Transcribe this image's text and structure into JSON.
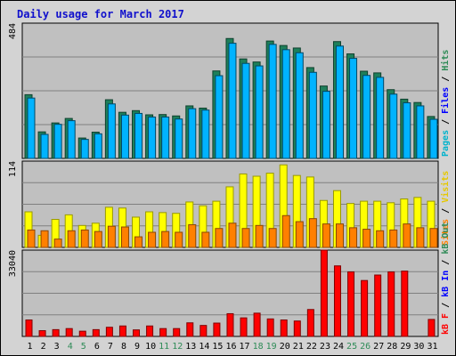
{
  "chart_data": {
    "type": "bar",
    "title": "Daily usage for March 2017",
    "days": [
      "1",
      "2",
      "3",
      "4",
      "5",
      "6",
      "7",
      "8",
      "9",
      "10",
      "11",
      "12",
      "13",
      "14",
      "15",
      "16",
      "17",
      "18",
      "19",
      "20",
      "21",
      "22",
      "23",
      "24",
      "25",
      "26",
      "27",
      "28",
      "29",
      "30",
      "31"
    ],
    "weekend_days": [
      "4",
      "5",
      "11",
      "12",
      "18",
      "19",
      "25",
      "26"
    ],
    "colors": {
      "title": "#1010cc",
      "pages": "#2e8b57",
      "files": "#0000ff",
      "hits": "#00b3cc",
      "sites": "#ff8000",
      "visits": "#e6c800",
      "kb_f": "#ff0000",
      "kb_in": "#0000ff",
      "kb_out": "#2e8b57",
      "weekend": "#2e8b57",
      "weekday": "#000000",
      "panel_bg": "#c0c0c0",
      "frame_bg": "#d3d3d3"
    },
    "panels": [
      {
        "max_label": "484",
        "axis_max": 484,
        "labels": [
          "Pages",
          "/",
          "Files",
          "/",
          "Hits"
        ],
        "series": [
          {
            "name": "Pages",
            "color": "#1e7f5a",
            "values": [
              228,
              95,
              127,
              143,
              73,
              94,
              210,
              165,
              171,
              156,
              157,
              152,
              188,
              180,
              313,
              429,
              356,
              345,
              420,
              404,
              395,
              325,
              259,
              418,
              374,
              312,
              306,
              246,
              212,
              200,
              150
            ]
          },
          {
            "name": "Files",
            "color": "#00b3ff",
            "values": [
              216,
              86,
              122,
              135,
              68,
              88,
              195,
              155,
              161,
              148,
              148,
              141,
              178,
              173,
              296,
              412,
              340,
              331,
              408,
              389,
              378,
              308,
              240,
              402,
              358,
              297,
              290,
              230,
              199,
              188,
              140
            ]
          },
          {
            "name": "Hits",
            "color": "#00b3ff",
            "values": [
              216,
              86,
              122,
              135,
              68,
              88,
              195,
              155,
              161,
              148,
              148,
              141,
              178,
              173,
              296,
              412,
              340,
              331,
              408,
              389,
              378,
              308,
              240,
              402,
              358,
              297,
              290,
              230,
              199,
              188,
              140
            ]
          }
        ]
      },
      {
        "max_label": "114",
        "axis_max": 114,
        "labels": [
          "Sites",
          "/",
          "Visits"
        ],
        "series": [
          {
            "name": "Visits",
            "color": "#ffff00",
            "values": [
              47,
              16,
              37,
              43,
              29,
              32,
              53,
              52,
              40,
              47,
              46,
              45,
              60,
              55,
              61,
              80,
              97,
              94,
              98,
              109,
              95,
              93,
              62,
              75,
              58,
              61,
              61,
              59,
              64,
              66,
              61
            ]
          },
          {
            "name": "Sites",
            "color": "#ff8000",
            "values": [
              23,
              22,
              11,
              22,
              23,
              21,
              28,
              27,
              14,
              20,
              21,
              20,
              30,
              20,
              25,
              32,
              25,
              29,
              25,
              42,
              34,
              38,
              31,
              31,
              26,
              24,
              22,
              23,
              31,
              26,
              25
            ]
          }
        ]
      },
      {
        "max_label": "33040",
        "axis_max": 33040,
        "labels": [
          "kB F",
          "/",
          "kB In",
          "/",
          "kB Out"
        ],
        "series": [
          {
            "name": "kB F",
            "color": "#ff0000",
            "values": [
              6300,
              2200,
              2600,
              3000,
              2000,
              2600,
              3500,
              4000,
              2500,
              4000,
              3000,
              3000,
              5200,
              4200,
              5100,
              8700,
              7100,
              8900,
              6700,
              6300,
              5900,
              10300,
              33040,
              27000,
              24700,
              21400,
              23500,
              24700,
              25000,
              0,
              6500
            ]
          }
        ]
      }
    ]
  }
}
